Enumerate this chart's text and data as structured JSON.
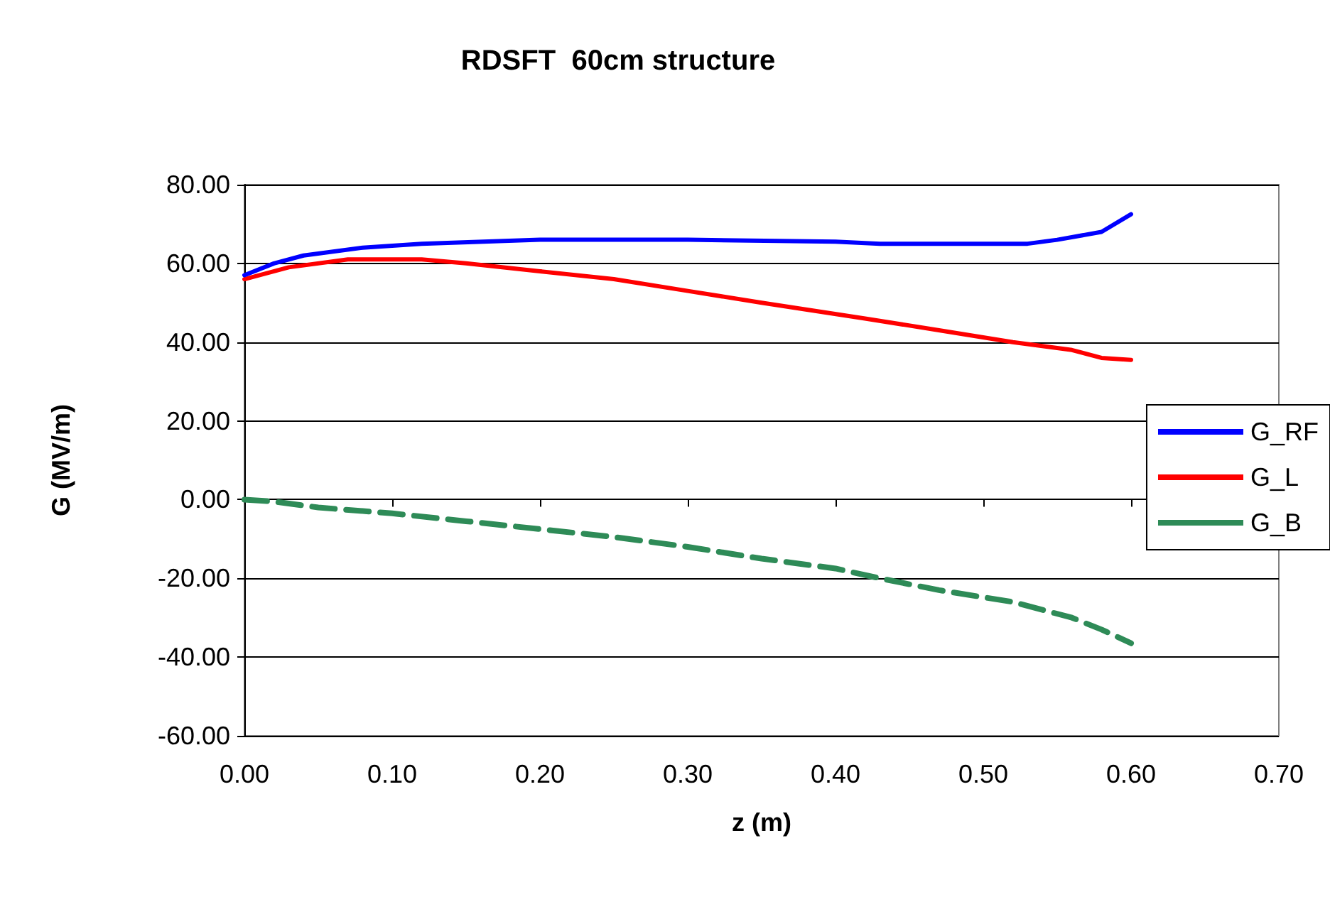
{
  "chart_data": {
    "type": "line",
    "title": "RDSFT  60cm structure",
    "xlabel": "z (m)",
    "ylabel": "G (MV/m)",
    "xlim": [
      0,
      0.7
    ],
    "ylim": [
      -60,
      80
    ],
    "xticks": [
      {
        "value": 0,
        "label": "0.00"
      },
      {
        "value": 0.1,
        "label": "0.10"
      },
      {
        "value": 0.2,
        "label": "0.20"
      },
      {
        "value": 0.3,
        "label": "0.30"
      },
      {
        "value": 0.4,
        "label": "0.40"
      },
      {
        "value": 0.5,
        "label": "0.50"
      },
      {
        "value": 0.6,
        "label": "0.60"
      },
      {
        "value": 0.7,
        "label": "0.70"
      }
    ],
    "yticks": [
      {
        "value": -60,
        "label": "-60.00"
      },
      {
        "value": -40,
        "label": "-40.00"
      },
      {
        "value": -20,
        "label": "-20.00"
      },
      {
        "value": 0,
        "label": "0.00"
      },
      {
        "value": 20,
        "label": "20.00"
      },
      {
        "value": 40,
        "label": "40.00"
      },
      {
        "value": 60,
        "label": "60.00"
      },
      {
        "value": 80,
        "label": "80.00"
      }
    ],
    "grid": "y",
    "legend": "right",
    "marker": "none",
    "x": [
      0,
      0.02,
      0.04,
      0.08,
      0.12,
      0.2,
      0.3,
      0.4,
      0.43,
      0.53,
      0.55,
      0.58,
      0.6
    ],
    "series": [
      {
        "name": "G_RF",
        "color": "#0000ff",
        "line_style": "solid",
        "values": [
          57,
          60,
          62,
          64,
          65,
          66,
          66,
          65.5,
          65,
          65,
          66,
          68,
          72.5
        ]
      },
      {
        "name": "G_L",
        "color": "#ff0000",
        "line_style": "solid",
        "x": [
          0,
          0.03,
          0.07,
          0.12,
          0.15,
          0.2,
          0.25,
          0.3,
          0.35,
          0.42,
          0.47,
          0.52,
          0.56,
          0.58,
          0.6
        ],
        "values": [
          56,
          59,
          61,
          61,
          60,
          58,
          56,
          53,
          50,
          46,
          43,
          40,
          38,
          36,
          35.5
        ]
      },
      {
        "name": "G_B",
        "color": "#2e8b57",
        "line_style": "dashed",
        "x": [
          0,
          0.02,
          0.05,
          0.1,
          0.15,
          0.2,
          0.25,
          0.3,
          0.35,
          0.4,
          0.43,
          0.47,
          0.52,
          0.56,
          0.58,
          0.6
        ],
        "values": [
          0,
          -0.5,
          -2,
          -3.5,
          -5.5,
          -7.5,
          -9.5,
          -12,
          -15,
          -17.5,
          -20,
          -23,
          -26,
          -30,
          -33,
          -36.5
        ]
      }
    ]
  }
}
